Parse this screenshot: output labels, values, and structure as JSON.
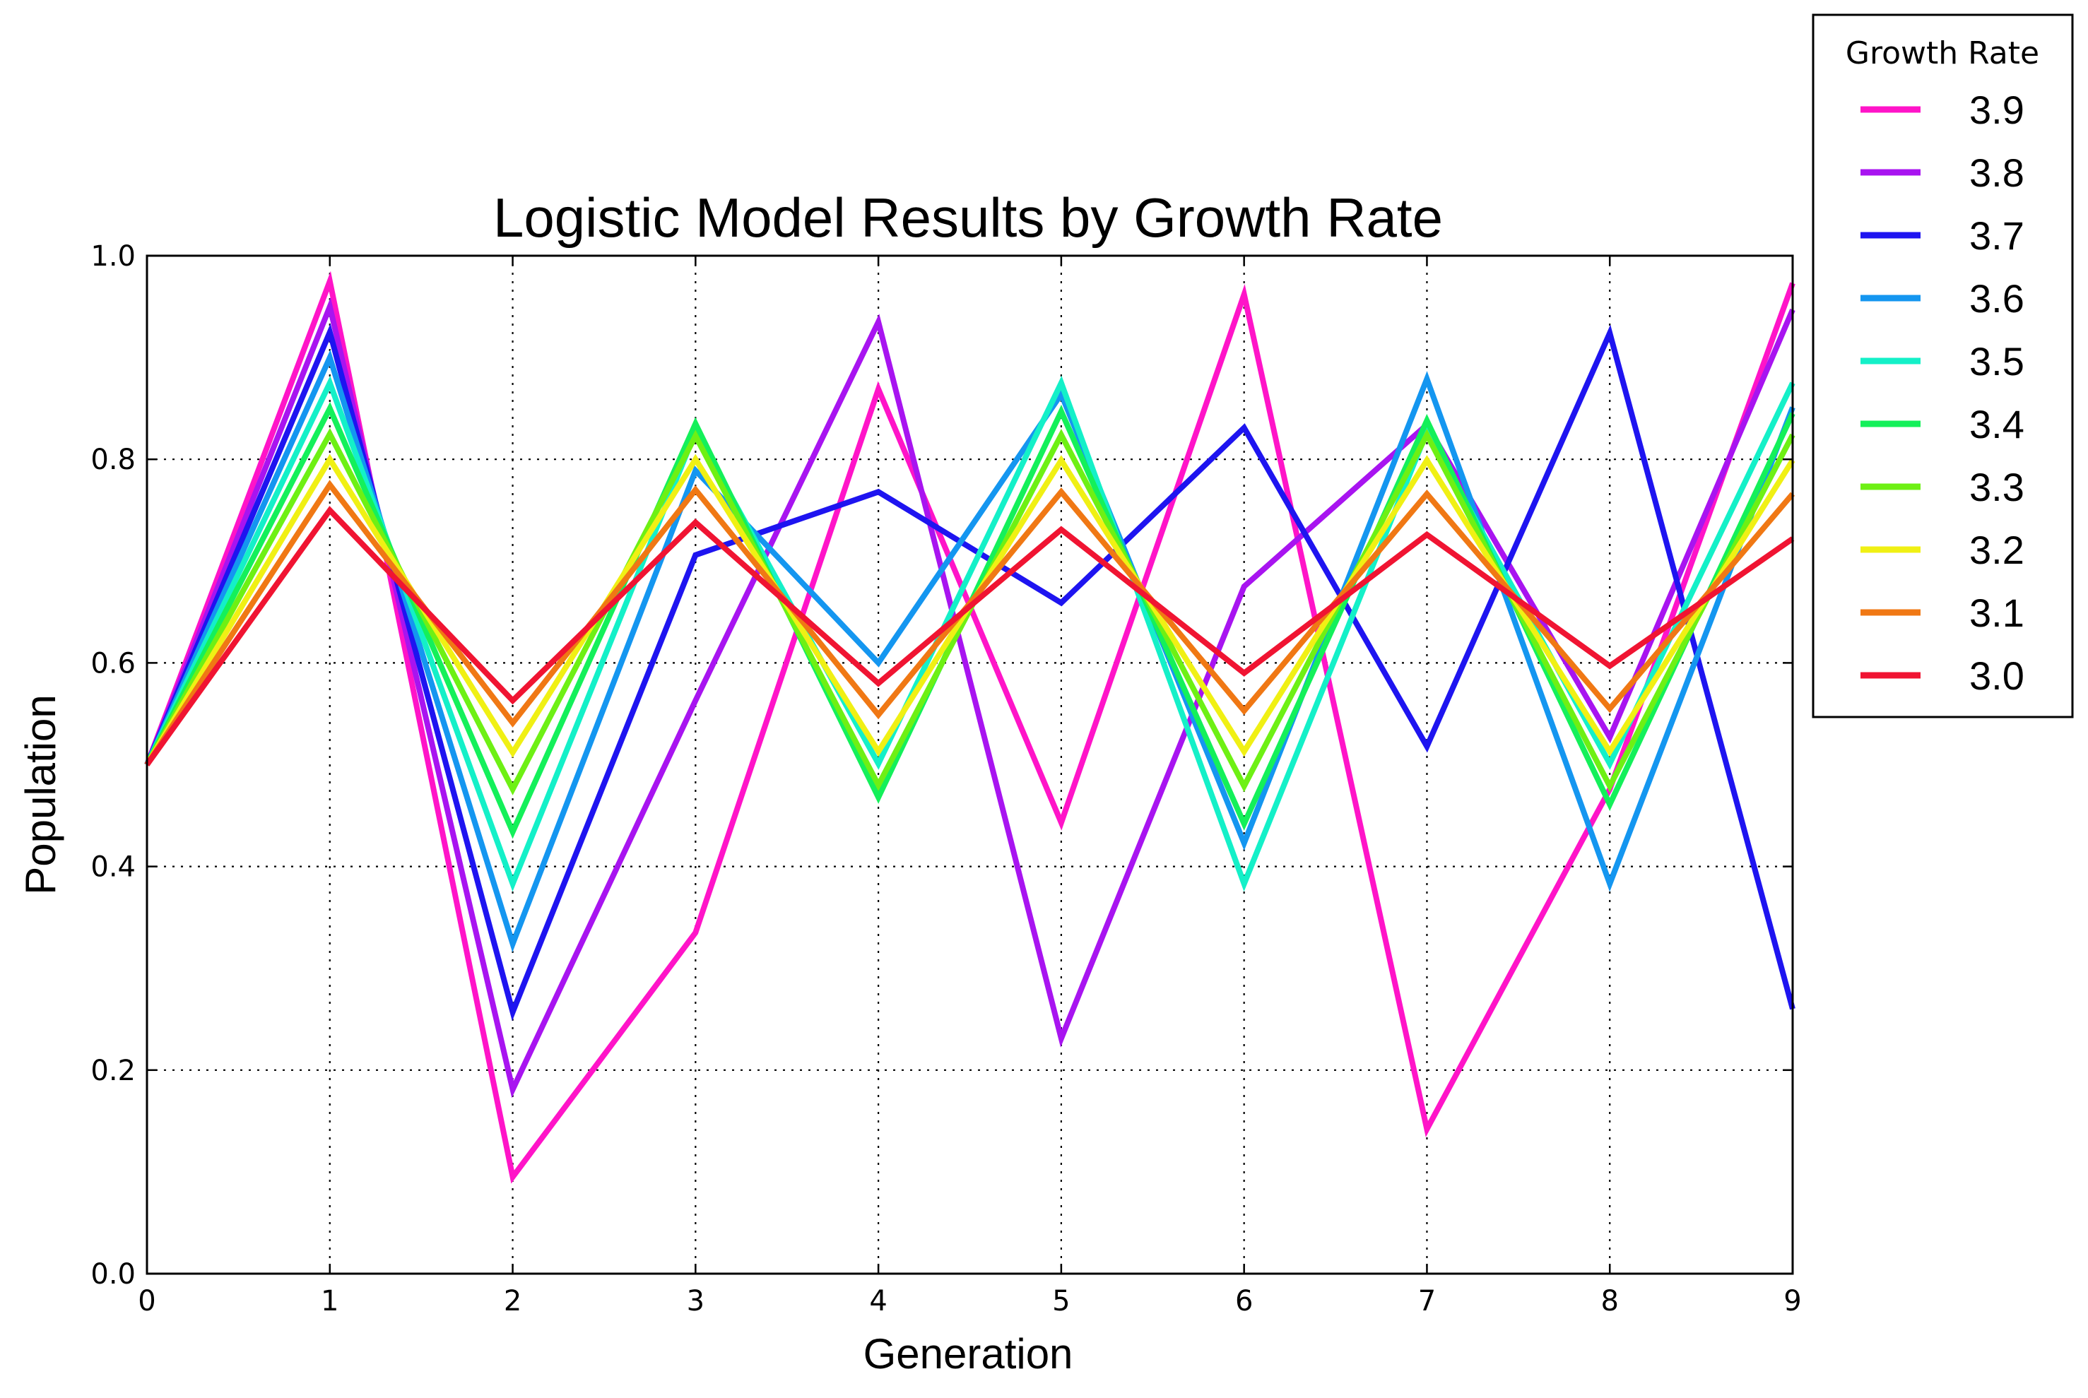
{
  "chart_data": {
    "type": "line",
    "title": "Logistic Model Results by Growth Rate",
    "xlabel": "Generation",
    "ylabel": "Population",
    "xlim": [
      0,
      9
    ],
    "ylim": [
      0.0,
      1.0
    ],
    "xticks": [
      "0",
      "1",
      "2",
      "3",
      "4",
      "5",
      "6",
      "7",
      "8",
      "9"
    ],
    "yticks": [
      "0.0",
      "0.2",
      "0.4",
      "0.6",
      "0.8",
      "1.0"
    ],
    "grid": true,
    "legend": {
      "title": "Growth Rate",
      "placement": "outside-top-right"
    },
    "x": [
      0,
      1,
      2,
      3,
      4,
      5,
      6,
      7,
      8,
      9
    ],
    "series": [
      {
        "name": "3.9",
        "color": "#ff14c8",
        "values": [
          0.5,
          0.975,
          0.095,
          0.335,
          0.869,
          0.443,
          0.962,
          0.142,
          0.476,
          0.973
        ]
      },
      {
        "name": "3.8",
        "color": "#a814f0",
        "values": [
          0.5,
          0.95,
          0.181,
          0.563,
          0.935,
          0.231,
          0.675,
          0.834,
          0.527,
          0.947
        ]
      },
      {
        "name": "3.7",
        "color": "#1e14f0",
        "values": [
          0.5,
          0.925,
          0.257,
          0.706,
          0.768,
          0.659,
          0.831,
          0.518,
          0.924,
          0.26
        ]
      },
      {
        "name": "3.6",
        "color": "#1496f0",
        "values": [
          0.5,
          0.9,
          0.324,
          0.789,
          0.6,
          0.864,
          0.423,
          0.879,
          0.383,
          0.851
        ]
      },
      {
        "name": "3.5",
        "color": "#14f0c8",
        "values": [
          0.5,
          0.875,
          0.383,
          0.827,
          0.501,
          0.875,
          0.383,
          0.827,
          0.501,
          0.875
        ]
      },
      {
        "name": "3.4",
        "color": "#14f05a",
        "values": [
          0.5,
          0.85,
          0.434,
          0.835,
          0.468,
          0.847,
          0.442,
          0.838,
          0.461,
          0.845
        ]
      },
      {
        "name": "3.3",
        "color": "#6ef014",
        "values": [
          0.5,
          0.825,
          0.476,
          0.823,
          0.48,
          0.824,
          0.479,
          0.824,
          0.479,
          0.824
        ]
      },
      {
        "name": "3.2",
        "color": "#f0f014",
        "values": [
          0.5,
          0.8,
          0.512,
          0.8,
          0.513,
          0.799,
          0.513,
          0.799,
          0.513,
          0.799
        ]
      },
      {
        "name": "3.1",
        "color": "#f07814",
        "values": [
          0.5,
          0.775,
          0.541,
          0.77,
          0.549,
          0.768,
          0.553,
          0.766,
          0.555,
          0.766
        ]
      },
      {
        "name": "3.0",
        "color": "#f01432",
        "values": [
          0.5,
          0.75,
          0.563,
          0.738,
          0.58,
          0.731,
          0.59,
          0.726,
          0.597,
          0.722
        ]
      }
    ]
  }
}
